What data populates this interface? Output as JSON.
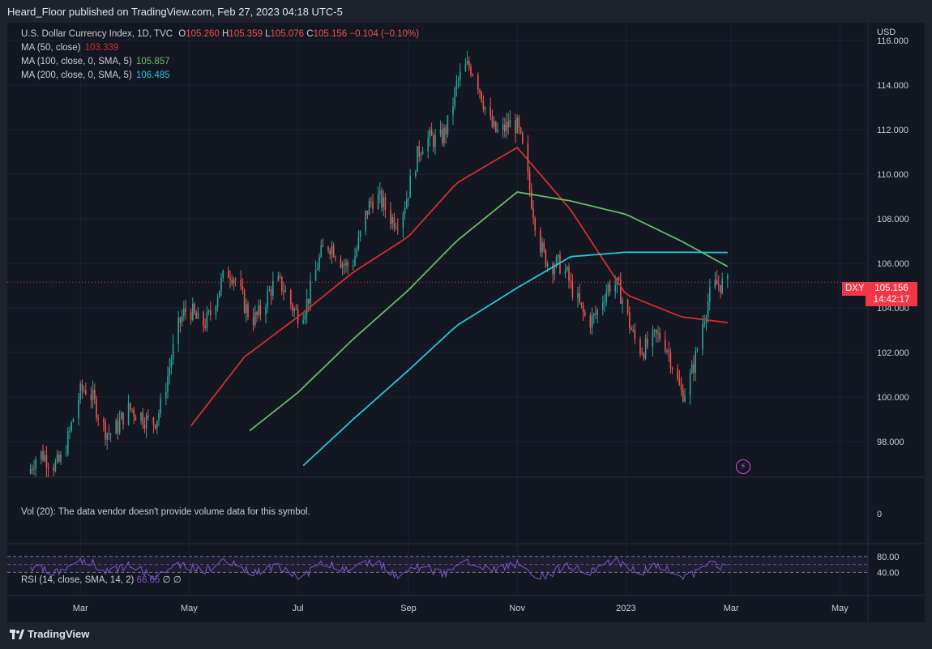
{
  "header": {
    "publisher": "Heard_Floor published on TradingView.com, Feb 27, 2023 04:18 UTC-5"
  },
  "legend": {
    "symbol": "U.S. Dollar Currency Index, 1D, TVC",
    "o_label": "O",
    "o": "105.260",
    "h_label": "H",
    "h": "105.359",
    "l_label": "L",
    "l": "105.076",
    "c_label": "C",
    "c": "105.156",
    "change": "−0.104 (−0.10%)",
    "ma50_label": "MA (50, close)",
    "ma50_value": "103.339",
    "ma100_label": "MA (100, close, 0, SMA, 5)",
    "ma100_value": "105.857",
    "ma200_label": "MA (200, close, 0, SMA, 5)",
    "ma200_value": "106.485"
  },
  "volume_pane": {
    "note": "Vol (20): The data vendor doesn't provide volume data for this symbol.",
    "axis_label": "0"
  },
  "rsi_pane": {
    "label": "RSI (14, close, SMA, 14, 2)",
    "value": "66.65",
    "extra": "∅ ∅",
    "levels": [
      "80.00",
      "40.00"
    ]
  },
  "price_axis": {
    "currency": "USD",
    "ticks": [
      "116.000",
      "114.000",
      "112.000",
      "110.000",
      "108.000",
      "106.000",
      "104.000",
      "102.000",
      "100.000",
      "98.000"
    ]
  },
  "time_axis": {
    "labels": [
      "Mar",
      "May",
      "Jul",
      "Sep",
      "Nov",
      "2023",
      "Mar",
      "May"
    ]
  },
  "badge": {
    "symbol": "DXY",
    "price": "105.156",
    "countdown": "14:42:17"
  },
  "footer": {
    "brand": "TradingView"
  },
  "colors": {
    "up": "#26a69a",
    "down": "#ef5350",
    "ma50": "#d32f2f",
    "ma100": "#66bb6a",
    "ma200": "#26c6da",
    "rsi": "#7e57c2",
    "badge": "#f23645"
  },
  "chart_data": {
    "type": "line",
    "title": "U.S. Dollar Currency Index, 1D, TVC",
    "ylabel": "USD",
    "ylim": [
      96.4,
      116.8
    ],
    "x": [
      "2022-02-01",
      "2022-03-01",
      "2022-04-01",
      "2022-05-01",
      "2022-06-01",
      "2022-07-01",
      "2022-08-01",
      "2022-09-01",
      "2022-09-28",
      "2022-11-01",
      "2022-12-01",
      "2023-01-01",
      "2023-02-01",
      "2023-02-27"
    ],
    "series": [
      {
        "name": "DXY close",
        "values": [
          96.8,
          98.8,
          98.8,
          103.6,
          104.2,
          105.2,
          106.2,
          110.0,
          114.0,
          111.2,
          104.6,
          103.2,
          101.6,
          105.156
        ]
      },
      {
        "name": "MA (50, close)",
        "values": [
          null,
          null,
          null,
          98.6,
          101.8,
          103.6,
          105.6,
          107.2,
          109.6,
          111.2,
          108.4,
          104.6,
          103.6,
          103.339
        ]
      },
      {
        "name": "MA (100, close, 0, SMA, 5)",
        "values": [
          null,
          null,
          null,
          null,
          98.3,
          100.2,
          102.6,
          104.8,
          107.0,
          109.2,
          108.8,
          108.2,
          107.0,
          105.857
        ]
      },
      {
        "name": "MA (200, close, 0, SMA, 5)",
        "values": [
          null,
          null,
          null,
          null,
          null,
          96.7,
          99.0,
          101.2,
          103.2,
          104.9,
          106.3,
          106.5,
          106.5,
          106.485
        ]
      }
    ],
    "grid": true
  }
}
